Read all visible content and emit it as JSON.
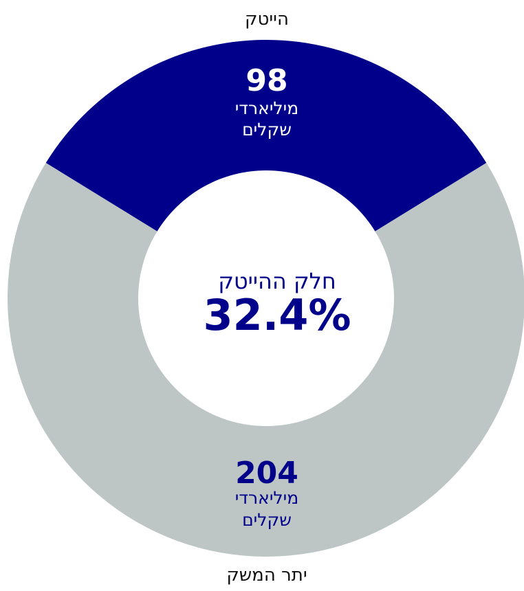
{
  "chart_data": {
    "type": "pie",
    "donut": true,
    "categories": [
      "הייטק",
      "יתר המשק"
    ],
    "values": [
      98,
      204
    ],
    "value_labels": [
      "98",
      "204"
    ],
    "unit_line1": "מיליארדי",
    "unit_line2": "שקלים",
    "colors": [
      "#00008b",
      "#bdc6c5"
    ],
    "center_label": "חלק ההייטק",
    "center_value": "32.4%",
    "text_color": "#00008b"
  }
}
